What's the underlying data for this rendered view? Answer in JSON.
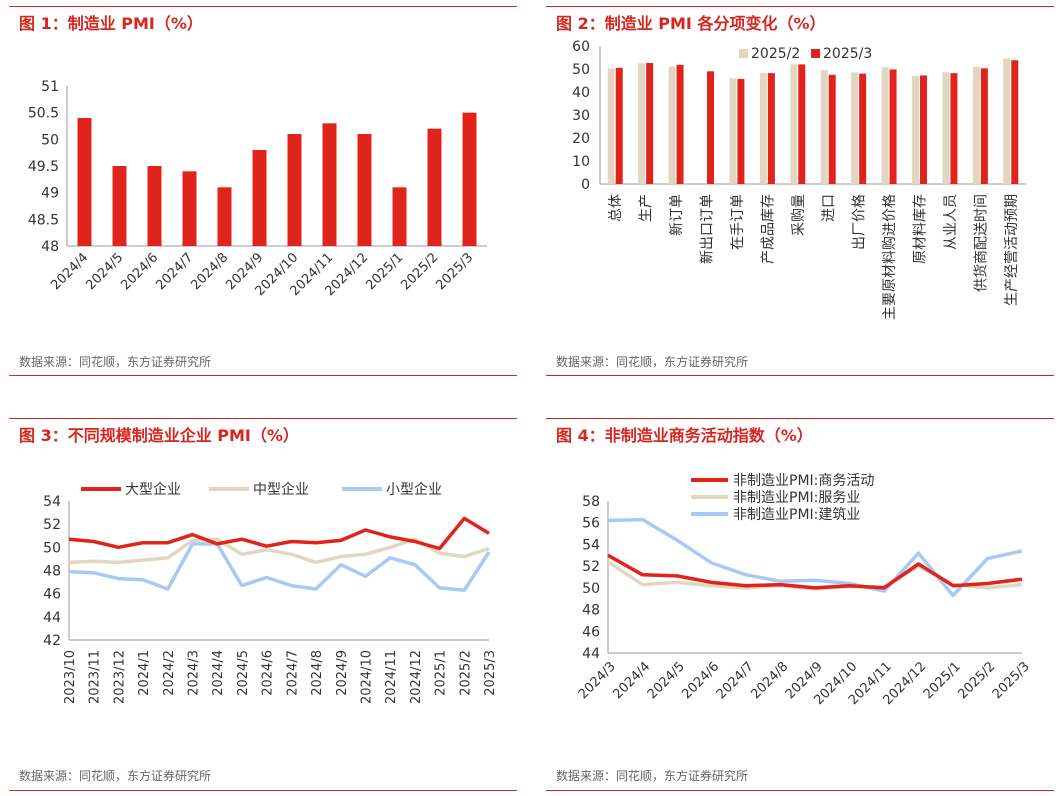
{
  "source_text": "数据来源：同花顺，东方证券研究所",
  "colors": {
    "red": "#e0241b",
    "beige": "#e3d6c1",
    "blue": "#a7c9f4",
    "title_red": "#d8261f"
  },
  "chart_data": [
    {
      "id": "fig1",
      "type": "bar",
      "title": "图 1：制造业 PMI（%）",
      "categories": [
        "2024/4",
        "2024/5",
        "2024/6",
        "2024/7",
        "2024/8",
        "2024/9",
        "2024/10",
        "2024/11",
        "2024/12",
        "2025/1",
        "2025/2",
        "2025/3"
      ],
      "values": [
        50.4,
        49.5,
        49.5,
        49.4,
        49.1,
        49.8,
        50.1,
        50.3,
        50.1,
        49.1,
        50.2,
        50.5
      ],
      "ylim": [
        48,
        51
      ],
      "yticks": [
        "48",
        "48.5",
        "49",
        "49.5",
        "50",
        "50.5",
        "51"
      ],
      "xlabel": "",
      "ylabel": ""
    },
    {
      "id": "fig2",
      "type": "bar",
      "title": "图 2：制造业 PMI 各分项变化（%）",
      "categories": [
        "总体",
        "生产",
        "新订单",
        "新出口订单",
        "在手订单",
        "产成品库存",
        "采购量",
        "进口",
        "出厂价格",
        "主要原材料购进价格",
        "原材料库存",
        "从业人员",
        "供货商配送时间",
        "生产经营活动预期"
      ],
      "series": [
        {
          "name": "2025/2",
          "values": [
            50.2,
            52.5,
            51.1,
            0,
            46.0,
            48.3,
            52.0,
            49.5,
            48.5,
            50.8,
            47.0,
            48.6,
            51.0,
            54.5
          ]
        },
        {
          "name": "2025/3",
          "values": [
            50.5,
            52.6,
            51.8,
            49.0,
            45.7,
            48.2,
            52.0,
            47.5,
            48.0,
            49.8,
            47.2,
            48.2,
            50.3,
            53.8
          ]
        }
      ],
      "ylim": [
        0,
        60
      ],
      "yticks": [
        "0",
        "10",
        "20",
        "30",
        "40",
        "50",
        "60"
      ],
      "legend": "top-center"
    },
    {
      "id": "fig3",
      "type": "line",
      "title": "图 3：不同规模制造业企业 PMI（%）",
      "categories": [
        "2023/10",
        "2023/11",
        "2023/12",
        "2024/1",
        "2024/2",
        "2024/3",
        "2024/4",
        "2024/5",
        "2024/6",
        "2024/7",
        "2024/8",
        "2024/9",
        "2024/10",
        "2024/11",
        "2024/12",
        "2025/1",
        "2025/2",
        "2025/3"
      ],
      "series": [
        {
          "name": "大型企业",
          "values": [
            50.7,
            50.5,
            50.0,
            50.4,
            50.4,
            51.1,
            50.3,
            50.7,
            50.1,
            50.5,
            50.4,
            50.6,
            51.5,
            50.9,
            50.5,
            49.9,
            52.5,
            51.2
          ]
        },
        {
          "name": "中型企业",
          "values": [
            48.7,
            48.8,
            48.7,
            48.9,
            49.1,
            50.6,
            50.7,
            49.4,
            49.8,
            49.4,
            48.7,
            49.2,
            49.4,
            50.0,
            50.7,
            49.5,
            49.2,
            49.9
          ]
        },
        {
          "name": "小型企业",
          "values": [
            47.9,
            47.8,
            47.3,
            47.2,
            46.4,
            50.3,
            50.3,
            46.7,
            47.4,
            46.7,
            46.4,
            48.5,
            47.5,
            49.1,
            48.5,
            46.5,
            46.3,
            49.6
          ]
        }
      ],
      "ylim": [
        42,
        54
      ],
      "yticks": [
        "42",
        "44",
        "46",
        "48",
        "50",
        "52",
        "54"
      ],
      "legend": "top"
    },
    {
      "id": "fig4",
      "type": "line",
      "title": "图 4：非制造业商务活动指数（%）",
      "categories": [
        "2024/3",
        "2024/4",
        "2024/5",
        "2024/6",
        "2024/7",
        "2024/8",
        "2024/9",
        "2024/10",
        "2024/11",
        "2024/12",
        "2025/1",
        "2025/2",
        "2025/3"
      ],
      "series": [
        {
          "name": "非制造业PMI:商务活动",
          "values": [
            53.0,
            51.2,
            51.1,
            50.5,
            50.2,
            50.3,
            50.0,
            50.2,
            50.0,
            52.2,
            50.2,
            50.4,
            50.8
          ]
        },
        {
          "name": "非制造业PMI:服务业",
          "values": [
            52.4,
            50.3,
            50.5,
            50.2,
            50.0,
            50.2,
            49.9,
            50.1,
            50.1,
            52.0,
            50.3,
            50.0,
            50.3
          ]
        },
        {
          "name": "非制造业PMI:建筑业",
          "values": [
            56.2,
            56.3,
            54.4,
            52.3,
            51.2,
            50.6,
            50.7,
            50.4,
            49.7,
            53.2,
            49.3,
            52.7,
            53.4
          ]
        }
      ],
      "ylim": [
        44,
        58
      ],
      "yticks": [
        "44",
        "46",
        "48",
        "50",
        "52",
        "54",
        "56",
        "58"
      ],
      "legend": "top"
    }
  ]
}
